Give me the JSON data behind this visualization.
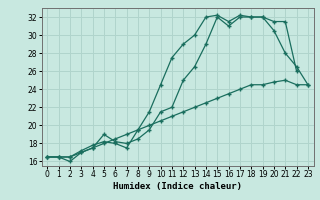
{
  "title": "",
  "xlabel": "Humidex (Indice chaleur)",
  "bg_color": "#c8e8e0",
  "grid_color": "#b0d4cc",
  "line_color": "#1a6e5e",
  "xlim": [
    -0.5,
    23.5
  ],
  "ylim": [
    15.5,
    33.0
  ],
  "xticks": [
    0,
    1,
    2,
    3,
    4,
    5,
    6,
    7,
    8,
    9,
    10,
    11,
    12,
    13,
    14,
    15,
    16,
    17,
    18,
    19,
    20,
    21,
    22,
    23
  ],
  "yticks": [
    16,
    18,
    20,
    22,
    24,
    26,
    28,
    30,
    32
  ],
  "line1_x": [
    0,
    1,
    2,
    3,
    4,
    5,
    6,
    7,
    8,
    9,
    10,
    11,
    12,
    13,
    14,
    15,
    16,
    17,
    18,
    19,
    20,
    21,
    22,
    23
  ],
  "line1_y": [
    16.5,
    16.5,
    16.5,
    17.2,
    17.8,
    18.2,
    18.0,
    17.5,
    19.5,
    21.5,
    24.5,
    27.5,
    29.0,
    30.0,
    32.0,
    32.2,
    31.5,
    32.2,
    32.0,
    32.0,
    30.5,
    28.0,
    26.5,
    24.5
  ],
  "line2_x": [
    0,
    1,
    2,
    3,
    4,
    5,
    6,
    7,
    8,
    9,
    10,
    11,
    12,
    13,
    14,
    15,
    16,
    17,
    18,
    19,
    20,
    21,
    22
  ],
  "line2_y": [
    16.5,
    16.5,
    16.0,
    17.0,
    17.5,
    19.0,
    18.2,
    18.0,
    18.5,
    19.5,
    21.5,
    22.0,
    25.0,
    26.5,
    29.0,
    32.0,
    31.0,
    32.0,
    32.0,
    32.0,
    31.5,
    31.5,
    26.0
  ],
  "line3_x": [
    0,
    1,
    2,
    3,
    4,
    5,
    6,
    7,
    8,
    9,
    10,
    11,
    12,
    13,
    14,
    15,
    16,
    17,
    18,
    19,
    20,
    21,
    22,
    23
  ],
  "line3_y": [
    16.5,
    16.5,
    16.5,
    17.0,
    17.5,
    18.0,
    18.5,
    19.0,
    19.5,
    20.0,
    20.5,
    21.0,
    21.5,
    22.0,
    22.5,
    23.0,
    23.5,
    24.0,
    24.5,
    24.5,
    24.8,
    25.0,
    24.5,
    24.5
  ]
}
